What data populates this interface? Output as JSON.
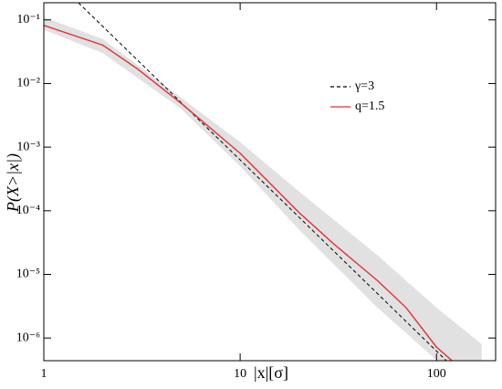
{
  "chart_data": {
    "type": "line",
    "xlabel": "|x|[σ]",
    "ylabel": "P(X>|x|)",
    "xscale": "log",
    "yscale": "log",
    "xlim": [
      1,
      200
    ],
    "ylim": [
      4.4e-07,
      0.186
    ],
    "xticks": [
      1,
      10,
      100
    ],
    "yticks": [
      {
        "value": 0.1,
        "label": "10⁻¹"
      },
      {
        "value": 0.01,
        "label": "10⁻²"
      },
      {
        "value": 0.001,
        "label": "10⁻³"
      },
      {
        "value": 0.0001,
        "label": "10⁻⁴"
      },
      {
        "value": 1e-05,
        "label": "10⁻⁵"
      },
      {
        "value": 1e-06,
        "label": "10⁻⁶"
      }
    ],
    "band": {
      "color": "#d9d9d9",
      "x": [
        1,
        2,
        5,
        10,
        20,
        50,
        100,
        170
      ],
      "upper": [
        0.11,
        0.05,
        0.006,
        0.0012,
        0.0002,
        2e-05,
        3e-06,
        8e-07
      ],
      "lower": [
        0.07,
        0.03,
        0.004,
        0.0005,
        5e-05,
        3e-06,
        4.5e-07,
        4.5e-07
      ]
    },
    "series": [
      {
        "name": "γ=3",
        "color": "#000000",
        "dash": true,
        "x": [
          1.5,
          10,
          120
        ],
        "values": [
          0.186,
          0.00063,
          3.6e-07
        ]
      },
      {
        "name": "q=1.5",
        "color": "#e03030",
        "dash": false,
        "x": [
          1,
          2,
          3,
          5,
          10,
          20,
          30,
          50,
          70,
          100,
          120
        ],
        "values": [
          0.082,
          0.04,
          0.017,
          0.0049,
          0.0008,
          9.3e-05,
          3e-05,
          8e-06,
          3e-06,
          7.2e-07,
          4.4e-07
        ]
      }
    ],
    "legend": "center right"
  }
}
